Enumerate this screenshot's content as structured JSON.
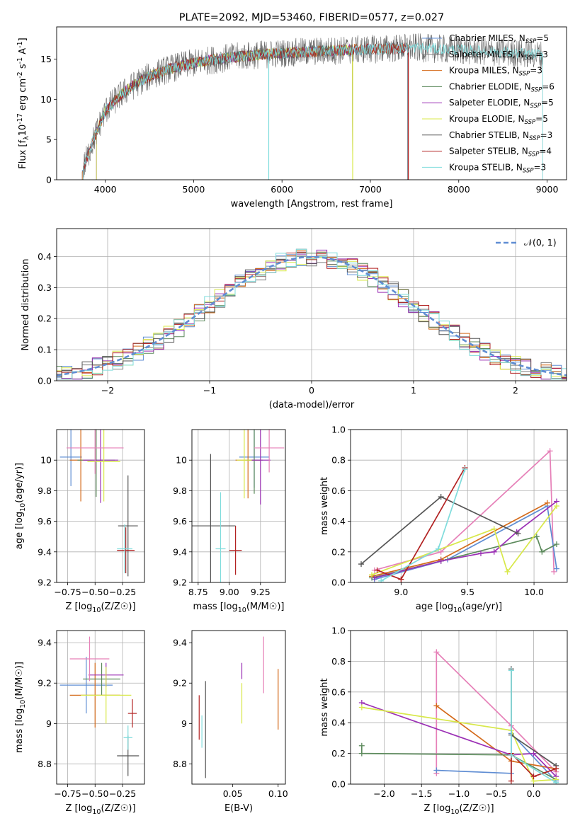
{
  "chart_data": [
    {
      "id": "spectrum",
      "type": "line",
      "title": "PLATE=2092, MJD=53460, FIBERID=0577, z=0.027",
      "xlabel": "wavelength [Angstrom, rest frame]",
      "ylabel": "Flux [f_λ10^{-17} erg cm^{-2} s^{-1} A^{-1}]",
      "xlim": [
        3450,
        9220
      ],
      "ylim": [
        0,
        19
      ],
      "xticks": [
        4000,
        5000,
        6000,
        7000,
        8000,
        9000
      ],
      "yticks": [
        0,
        5,
        10,
        15
      ],
      "legend_position": "top-right",
      "series": [
        {
          "name": "Chabrier MILES, N_SSP=5",
          "color": "#5f8dd3",
          "range": [
            3740,
            7420
          ],
          "drop": null
        },
        {
          "name": "Salpeter MILES, N_SSP=3",
          "color": "#7f7f7f",
          "range": [
            3740,
            7420
          ],
          "drop": null
        },
        {
          "name": "Kroupa MILES, N_SSP=3",
          "color": "#d46a1a",
          "range": [
            3740,
            7430
          ],
          "drop": null
        },
        {
          "name": "Chabrier ELODIE, N_SSP=6",
          "color": "#5c8a5c",
          "range": [
            3900,
            6800
          ],
          "drop": null
        },
        {
          "name": "Salpeter ELODIE, N_SSP=5",
          "color": "#9b30b5",
          "range": [
            3900,
            6800
          ],
          "drop": null
        },
        {
          "name": "Kroupa ELODIE, N_SSP=5",
          "color": "#d8e84a",
          "range": [
            3900,
            6800
          ],
          "drop": 6800
        },
        {
          "name": "Chabrier STELIB, N_SSP=3",
          "color": "#555555",
          "range": [
            3750,
            8950
          ],
          "drop": null
        },
        {
          "name": "Salpeter STELIB, N_SSP=4",
          "color": "#b22222",
          "range": [
            3750,
            7430
          ],
          "drop": 7430
        },
        {
          "name": "Kroupa STELIB, N_SSP=3",
          "color": "#7fdcdc",
          "range": [
            3750,
            8950
          ],
          "drop": 5850
        }
      ]
    },
    {
      "id": "residuals",
      "type": "line",
      "xlabel": "(data-model)/error",
      "ylabel": "Normed distribution",
      "xlim": [
        -2.5,
        2.5
      ],
      "ylim": [
        0,
        0.49
      ],
      "xticks": [
        -2,
        -1,
        0,
        1,
        2
      ],
      "yticks": [
        0.0,
        0.1,
        0.2,
        0.3,
        0.4
      ],
      "grid": true,
      "legend": "𝒩(0, 1)",
      "gaussian_color": "#5f8dd3"
    },
    {
      "id": "age_vs_Z",
      "type": "scatter",
      "xlabel": "Z [log10(Z/Z☉)]",
      "ylabel": "age [log10(age/yr)]",
      "xlim": [
        -0.85,
        -0.05
      ],
      "ylim": [
        9.2,
        10.2
      ],
      "xticks": [
        -0.75,
        -0.5,
        -0.25
      ],
      "xticklabels": [
        "−0.75",
        "−0.50",
        "−0.25"
      ],
      "yticks": [
        9.2,
        9.4,
        9.6,
        9.8,
        10.0
      ],
      "grid": true,
      "points": [
        {
          "color": "#5f8dd3",
          "x": -0.72,
          "xerr": 0.1,
          "y": 10.02,
          "yerr": 0.19
        },
        {
          "color": "#d46a1a",
          "x": -0.63,
          "xerr": 0.1,
          "y": 10.0,
          "yerr": 0.27
        },
        {
          "color": "#5c8a5c",
          "x": -0.49,
          "xerr": 0.17,
          "y": 10.0,
          "yerr": 0.24
        },
        {
          "color": "#9b30b5",
          "x": -0.45,
          "xerr": 0.16,
          "y": 10.0,
          "yerr": 0.28
        },
        {
          "color": "#d8e84a",
          "x": -0.42,
          "xerr": 0.15,
          "y": 9.99,
          "yerr": 0.26
        },
        {
          "color": "#e680b8",
          "x": -0.5,
          "xerr": 0.26,
          "y": 10.08,
          "yerr": 0.17
        },
        {
          "color": "#555555",
          "x": -0.2,
          "xerr": 0.09,
          "y": 9.57,
          "yerr": 0.33
        },
        {
          "color": "#b22222",
          "x": -0.22,
          "xerr": 0.08,
          "y": 9.41,
          "yerr": 0.15
        },
        {
          "color": "#7fdcdc",
          "x": -0.23,
          "xerr": 0.07,
          "y": 9.42,
          "yerr": 0.16
        }
      ]
    },
    {
      "id": "age_vs_mass",
      "type": "scatter",
      "xlabel": "mass [log10(M/M☉)]",
      "xlim": [
        8.7,
        9.45
      ],
      "ylim": [
        9.2,
        10.2
      ],
      "xticks": [
        8.75,
        9.0,
        9.25
      ],
      "xticklabels": [
        "8.75",
        "9.00",
        "9.25"
      ],
      "yticks": [
        9.2,
        9.4,
        9.6,
        9.8,
        10.0
      ],
      "grid": true,
      "points": [
        {
          "color": "#5f8dd3",
          "x": 9.2,
          "xerr": 0.12,
          "y": 10.02,
          "yerr": 0.2
        },
        {
          "color": "#d46a1a",
          "x": 9.15,
          "xerr": 0.1,
          "y": 10.0,
          "yerr": 0.25
        },
        {
          "color": "#5c8a5c",
          "x": 9.2,
          "xerr": 0.07,
          "y": 10.0,
          "yerr": 0.22
        },
        {
          "color": "#9b30b5",
          "x": 9.25,
          "xerr": 0.08,
          "y": 10.0,
          "yerr": 0.29
        },
        {
          "color": "#d8e84a",
          "x": 9.12,
          "xerr": 0.06,
          "y": 10.0,
          "yerr": 0.25
        },
        {
          "color": "#e680b8",
          "x": 9.32,
          "xerr": 0.12,
          "y": 10.08,
          "yerr": 0.16
        },
        {
          "color": "#555555",
          "x": 8.85,
          "xerr": 0.2,
          "y": 9.57,
          "yerr": 0.47
        },
        {
          "color": "#b22222",
          "x": 9.05,
          "xerr": 0.05,
          "y": 9.41,
          "yerr": 0.16
        },
        {
          "color": "#7fdcdc",
          "x": 8.93,
          "xerr": 0.04,
          "y": 9.42,
          "yerr": 0.37
        }
      ]
    },
    {
      "id": "weight_vs_age",
      "type": "line",
      "xlabel": "age [log10(age/yr)]",
      "ylabel": "mass weight",
      "xlim": [
        8.62,
        10.25
      ],
      "ylim": [
        0,
        1.0
      ],
      "xticks": [
        9.0,
        9.5,
        10.0
      ],
      "xticklabels": [
        "9.0",
        "9.5",
        "10.0"
      ],
      "yticks": [
        0.0,
        0.2,
        0.4,
        0.6,
        0.8,
        1.0
      ],
      "grid": true,
      "series": [
        {
          "color": "#e680b8",
          "x": [
            8.8,
            9.3,
            10.12,
            10.15
          ],
          "y": [
            0.08,
            0.2,
            0.86,
            0.07
          ]
        },
        {
          "color": "#5f8dd3",
          "x": [
            8.8,
            9.35,
            10.1,
            10.17
          ],
          "y": [
            0.02,
            0.15,
            0.5,
            0.09
          ]
        },
        {
          "color": "#d46a1a",
          "x": [
            8.78,
            9.3,
            10.1
          ],
          "y": [
            0.04,
            0.15,
            0.52
          ]
        },
        {
          "color": "#5c8a5c",
          "x": [
            8.78,
            9.3,
            10.02,
            10.06,
            10.17
          ],
          "y": [
            0.03,
            0.14,
            0.3,
            0.2,
            0.25
          ]
        },
        {
          "color": "#9b30b5",
          "x": [
            8.8,
            9.3,
            9.6,
            9.7,
            9.87,
            10.17
          ],
          "y": [
            0.03,
            0.14,
            0.19,
            0.2,
            0.33,
            0.53
          ]
        },
        {
          "color": "#d8e84a",
          "x": [
            8.78,
            9.7,
            9.8,
            10.17
          ],
          "y": [
            0.05,
            0.35,
            0.07,
            0.5
          ]
        },
        {
          "color": "#555555",
          "x": [
            8.7,
            9.3,
            9.88
          ],
          "y": [
            0.12,
            0.56,
            0.32
          ]
        },
        {
          "color": "#b22222",
          "x": [
            8.82,
            9.0,
            9.48
          ],
          "y": [
            0.08,
            0.02,
            0.75
          ]
        },
        {
          "color": "#7fdcdc",
          "x": [
            8.85,
            9.28,
            9.48
          ],
          "y": [
            0.01,
            0.22,
            0.74
          ]
        }
      ]
    },
    {
      "id": "mass_vs_Z",
      "type": "scatter",
      "xlabel": "Z [log10(Z/Z☉)]",
      "ylabel": "mass [log10(M/M☉)]",
      "xlim": [
        -0.85,
        -0.05
      ],
      "ylim": [
        8.7,
        9.46
      ],
      "xticks": [
        -0.75,
        -0.5,
        -0.25
      ],
      "xticklabels": [
        "−0.75",
        "−0.50",
        "−0.25"
      ],
      "yticks": [
        8.8,
        9.0,
        9.2,
        9.4
      ],
      "grid": true,
      "points": [
        {
          "color": "#5f8dd3",
          "x": -0.58,
          "xerr": 0.24,
          "y": 9.19,
          "yerr": 0.14
        },
        {
          "color": "#d46a1a",
          "x": -0.5,
          "xerr": 0.23,
          "y": 9.14,
          "yerr": 0.16
        },
        {
          "color": "#5c8a5c",
          "x": -0.44,
          "xerr": 0.17,
          "y": 9.22,
          "yerr": 0.08
        },
        {
          "color": "#9b30b5",
          "x": -0.4,
          "xerr": 0.16,
          "y": 9.24,
          "yerr": 0.06
        },
        {
          "color": "#d8e84a",
          "x": -0.4,
          "xerr": 0.23,
          "y": 9.14,
          "yerr": 0.14
        },
        {
          "color": "#e680b8",
          "x": -0.55,
          "xerr": 0.18,
          "y": 9.32,
          "yerr": 0.11
        },
        {
          "color": "#555555",
          "x": -0.2,
          "xerr": 0.1,
          "y": 8.84,
          "yerr": 0.1
        },
        {
          "color": "#b22222",
          "x": -0.16,
          "xerr": 0.04,
          "y": 9.05,
          "yerr": 0.07
        },
        {
          "color": "#7fdcdc",
          "x": -0.2,
          "xerr": 0.04,
          "y": 8.93,
          "yerr": 0.06
        }
      ]
    },
    {
      "id": "mass_vs_EBV",
      "type": "scatter",
      "xlabel": "E(B-V)",
      "xlim": [
        0.005,
        0.108
      ],
      "ylim": [
        8.7,
        9.46
      ],
      "xticks": [
        0.05,
        0.1
      ],
      "xticklabels": [
        "0.05",
        "0.10"
      ],
      "yticks": [
        8.8,
        9.0,
        9.2,
        9.4
      ],
      "grid": false,
      "points": [
        {
          "color": "#b22222",
          "x": 0.013,
          "xerr": 0,
          "y": 9.03,
          "yerr": 0.11
        },
        {
          "color": "#7fdcdc",
          "x": 0.016,
          "xerr": 0,
          "y": 8.96,
          "yerr": 0.08
        },
        {
          "color": "#555555",
          "x": 0.02,
          "xerr": 0,
          "y": 8.97,
          "yerr": 0.24
        },
        {
          "color": "#9b30b5",
          "x": 0.06,
          "xerr": 0,
          "y": 9.26,
          "yerr": 0.04
        },
        {
          "color": "#d8e84a",
          "x": 0.06,
          "xerr": 0,
          "y": 9.1,
          "yerr": 0.1
        },
        {
          "color": "#e680b8",
          "x": 0.084,
          "xerr": 0,
          "y": 9.29,
          "yerr": 0.14
        },
        {
          "color": "#d46a1a",
          "x": 0.1,
          "xerr": 0,
          "y": 9.12,
          "yerr": 0.15
        }
      ]
    },
    {
      "id": "weight_vs_Z",
      "type": "line",
      "xlabel": "Z [log10(Z/Z☉)]",
      "ylabel": "mass weight",
      "xlim": [
        -2.45,
        0.45
      ],
      "ylim": [
        0,
        1.0
      ],
      "xticks": [
        -2.0,
        -1.5,
        -1.0,
        -0.5,
        0.0
      ],
      "xticklabels": [
        "−2.0",
        "−1.5",
        "−1.0",
        "−0.5",
        "0.0"
      ],
      "yticks": [
        0.0,
        0.2,
        0.4,
        0.6,
        0.8,
        1.0
      ],
      "grid": true,
      "series": [
        {
          "color": "#e680b8",
          "x": [
            -1.3,
            -1.3,
            -0.3,
            0.3
          ],
          "y": [
            0.07,
            0.86,
            0.38,
            0.08
          ]
        },
        {
          "color": "#5f8dd3",
          "x": [
            -1.3,
            -0.3,
            -0.3,
            0.3
          ],
          "y": [
            0.09,
            0.07,
            0.33,
            0.02
          ]
        },
        {
          "color": "#d46a1a",
          "x": [
            -1.3,
            -0.3,
            0.3
          ],
          "y": [
            0.51,
            0.15,
            0.1
          ]
        },
        {
          "color": "#5c8a5c",
          "x": [
            -2.3,
            -2.3,
            -0.3,
            0.3
          ],
          "y": [
            0.25,
            0.2,
            0.19,
            0.03
          ]
        },
        {
          "color": "#9b30b5",
          "x": [
            -2.3,
            -0.3,
            0.0,
            0.3
          ],
          "y": [
            0.53,
            0.19,
            0.2,
            0.05
          ]
        },
        {
          "color": "#d8e84a",
          "x": [
            -2.3,
            -0.3,
            0.0,
            0.3
          ],
          "y": [
            0.5,
            0.35,
            0.02,
            0.03
          ]
        },
        {
          "color": "#555555",
          "x": [
            -0.3,
            -0.3,
            0.3
          ],
          "y": [
            0.75,
            0.32,
            0.12
          ]
        },
        {
          "color": "#b22222",
          "x": [
            -0.3,
            -0.3,
            0.0,
            0.3
          ],
          "y": [
            0.02,
            0.2,
            0.05,
            0.1
          ]
        },
        {
          "color": "#7fdcdc",
          "x": [
            -0.3,
            -0.3,
            0.3
          ],
          "y": [
            0.74,
            0.19,
            0.01
          ]
        }
      ]
    }
  ]
}
